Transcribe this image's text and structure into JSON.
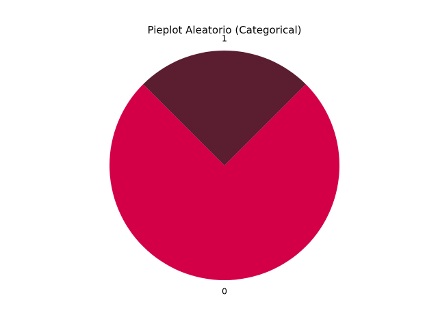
{
  "chart_data": {
    "type": "pie",
    "title": "Pieplot Aleatorio (Categorical)",
    "labels": [
      "0",
      "1"
    ],
    "values": [
      75,
      25
    ],
    "colors": [
      "#d40047",
      "#5a1e30"
    ],
    "start_angle_deg": 135,
    "direction": "counterclockwise"
  }
}
